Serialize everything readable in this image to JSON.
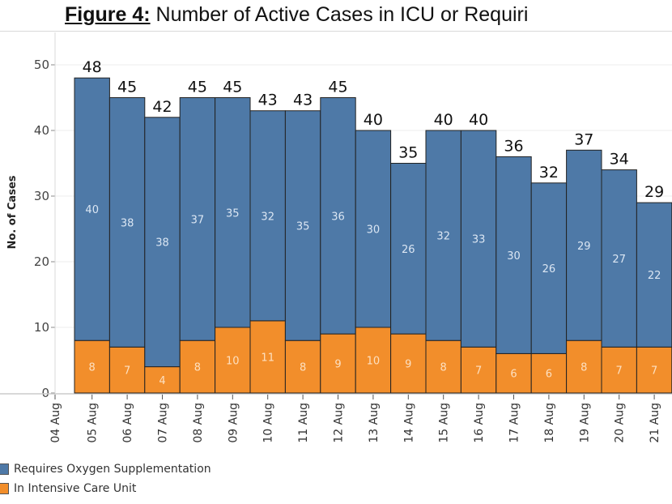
{
  "title": {
    "prefix": "Figure 4:",
    "text": " Number of Active Cases in ICU or Requiri"
  },
  "chart_data": {
    "type": "bar",
    "stacked": true,
    "title": "Figure 4: Number of Active Cases in ICU or Requiri",
    "xlabel": "",
    "ylabel": "No. of Cases",
    "ylim": [
      0,
      50
    ],
    "yticks": [
      0,
      10,
      20,
      30,
      40,
      50
    ],
    "grid": true,
    "x_axis_ticks": [
      "04 Aug",
      "05 Aug",
      "06 Aug",
      "07 Aug",
      "08 Aug",
      "09 Aug",
      "10 Aug",
      "11 Aug",
      "12 Aug",
      "13 Aug",
      "14 Aug",
      "15 Aug",
      "16 Aug",
      "17 Aug",
      "18 Aug",
      "19 Aug",
      "20 Aug",
      "21 Aug"
    ],
    "categories": [
      "05 Aug",
      "06 Aug",
      "07 Aug",
      "08 Aug",
      "09 Aug",
      "10 Aug",
      "11 Aug",
      "12 Aug",
      "13 Aug",
      "14 Aug",
      "15 Aug",
      "16 Aug",
      "17 Aug",
      "18 Aug",
      "19 Aug",
      "20 Aug",
      "21 Aug"
    ],
    "series": [
      {
        "name": "In Intensive Care Unit",
        "color": "#f28e2b",
        "values": [
          8,
          7,
          4,
          8,
          10,
          11,
          8,
          9,
          10,
          9,
          8,
          7,
          6,
          6,
          8,
          7,
          7
        ]
      },
      {
        "name": "Requires Oxygen Supplementation",
        "color": "#4e79a7",
        "values": [
          40,
          38,
          38,
          37,
          35,
          32,
          35,
          36,
          30,
          26,
          32,
          33,
          30,
          26,
          29,
          27,
          22
        ]
      }
    ],
    "totals": [
      48,
      45,
      42,
      45,
      45,
      43,
      43,
      45,
      40,
      35,
      40,
      40,
      36,
      32,
      37,
      34,
      29
    ],
    "legend": {
      "position": "bottom-left",
      "items": [
        {
          "label": "Requires Oxygen Supplementation",
          "color": "#4e79a7"
        },
        {
          "label": "In Intensive Care Unit",
          "color": "#f28e2b"
        }
      ]
    }
  }
}
